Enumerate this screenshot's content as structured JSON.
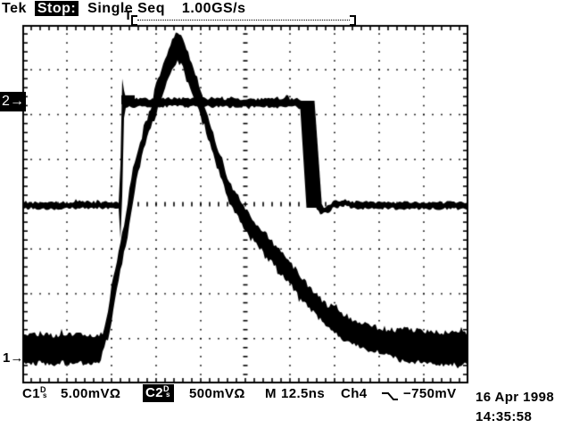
{
  "colors": {
    "ink": "#000000",
    "paper": "#ffffff"
  },
  "header": {
    "brand": "Tek",
    "status": "Stop:",
    "mode": "Single Seq",
    "sample_rate": "1.00GS/s"
  },
  "record_view": {
    "trigger_marker": "T"
  },
  "channel_markers": {
    "ch2": "2→",
    "ch1": "1→"
  },
  "readout": {
    "ch1": {
      "label": "C1",
      "indicator_sup": "D",
      "indicator_sub": "s",
      "scale": "5.00mVΩ"
    },
    "ch2": {
      "label": "C2",
      "indicator_sup": "D",
      "indicator_sub": "s",
      "scale": "500mVΩ"
    },
    "timebase": {
      "label": "M",
      "value": "12.5ns"
    },
    "trigger": {
      "source": "Ch4",
      "slope": "falling-edge",
      "level": "−750mV"
    },
    "date": "16 Apr 1998",
    "time": "14:35:58"
  },
  "chart_data": {
    "type": "line",
    "title": "Tektronix single-sequence acquisition, 1.00 GS/s",
    "x_axis": {
      "scale_per_div": "12.5ns",
      "divisions": 10,
      "total_span": "125ns"
    },
    "y_axis": {
      "divisions": 8
    },
    "grid": "dotted divisions, center crosshair ticks every 0.2 div, frame ticks every 0.2 div",
    "legend_position": "bottom readout bar",
    "series": [
      {
        "name": "Ch1",
        "vertical_scale": "5.00mV/div",
        "marker_level_div": 7.42,
        "description": "fast-rising pulse with rounded peak and slow exponential decay back to noisy baseline",
        "points_div": [
          [
            0,
            7.22
          ],
          [
            0.6,
            7.24
          ],
          [
            1.2,
            7.22
          ],
          [
            1.6,
            7.24
          ],
          [
            1.74,
            7.22
          ],
          [
            1.82,
            7.04
          ],
          [
            1.9,
            6.77
          ],
          [
            1.96,
            6.45
          ],
          [
            2.02,
            6.09
          ],
          [
            2.08,
            5.77
          ],
          [
            2.16,
            5.37
          ],
          [
            2.24,
            4.96
          ],
          [
            2.32,
            4.56
          ],
          [
            2.38,
            4.22
          ],
          [
            2.44,
            3.84
          ],
          [
            2.5,
            3.48
          ],
          [
            2.58,
            3.12
          ],
          [
            2.66,
            2.79
          ],
          [
            2.76,
            2.45
          ],
          [
            2.86,
            2.11
          ],
          [
            2.96,
            1.79
          ],
          [
            3.06,
            1.47
          ],
          [
            3.16,
            1.19
          ],
          [
            3.26,
            0.92
          ],
          [
            3.34,
            0.72
          ],
          [
            3.42,
            0.56
          ],
          [
            3.48,
            0.5
          ],
          [
            3.54,
            0.54
          ],
          [
            3.6,
            0.66
          ],
          [
            3.68,
            0.86
          ],
          [
            3.78,
            1.11
          ],
          [
            3.9,
            1.45
          ],
          [
            4.04,
            1.87
          ],
          [
            4.18,
            2.33
          ],
          [
            4.32,
            2.79
          ],
          [
            4.46,
            3.22
          ],
          [
            4.6,
            3.62
          ],
          [
            4.74,
            3.94
          ],
          [
            4.9,
            4.16
          ],
          [
            5.08,
            4.44
          ],
          [
            5.26,
            4.68
          ],
          [
            5.42,
            4.86
          ],
          [
            5.6,
            5.07
          ],
          [
            5.76,
            5.27
          ],
          [
            5.92,
            5.45
          ],
          [
            6.1,
            5.67
          ],
          [
            6.26,
            5.87
          ],
          [
            6.42,
            6.07
          ],
          [
            6.56,
            6.23
          ],
          [
            6.7,
            6.37
          ],
          [
            6.84,
            6.49
          ],
          [
            6.98,
            6.59
          ],
          [
            7.12,
            6.69
          ],
          [
            7.28,
            6.79
          ],
          [
            7.44,
            6.87
          ],
          [
            7.62,
            6.95
          ],
          [
            7.82,
            7.0
          ],
          [
            8.02,
            7.04
          ],
          [
            8.26,
            7.1
          ],
          [
            8.52,
            7.14
          ],
          [
            8.78,
            7.16
          ],
          [
            9.06,
            7.2
          ],
          [
            9.32,
            7.22
          ],
          [
            9.62,
            7.22
          ],
          [
            9.86,
            7.24
          ],
          [
            10,
            7.22
          ]
        ],
        "render": {
          "seed": 7,
          "jitter": 3,
          "slope_k": 3.2,
          "halfwidth": [
            [
              0,
              1.78,
              16
            ],
            [
              1.78,
              2.95,
              9
            ],
            [
              2.95,
              4.05,
              16
            ],
            [
              4.05,
              6.9,
              12
            ],
            [
              6.9,
              8.4,
              14
            ],
            [
              8.4,
              10.01,
              18
            ]
          ],
          "fills": []
        }
      },
      {
        "name": "Ch2",
        "vertical_scale": "500mV/div",
        "marker_level_div": 1.73,
        "description": "square pulse, high from 2.2 div to 6.4 div with jittered falling edge",
        "points_div": [
          [
            0,
            4.03
          ],
          [
            1.1,
            4.02
          ],
          [
            2.16,
            4.02
          ],
          [
            2.2,
            3.94
          ],
          [
            2.26,
            1.79
          ],
          [
            2.3,
            1.74
          ],
          [
            3.5,
            1.73
          ],
          [
            5.1,
            1.74
          ],
          [
            6.22,
            1.73
          ],
          [
            6.28,
            1.89
          ],
          [
            6.6,
            3.94
          ],
          [
            6.66,
            4.1
          ],
          [
            6.82,
            4.14
          ],
          [
            6.98,
            4.0
          ],
          [
            7.22,
            3.97
          ],
          [
            7.46,
            4.02
          ],
          [
            7.9,
            4.03
          ],
          [
            8.9,
            4.03
          ],
          [
            10,
            4.03
          ]
        ],
        "render": {
          "seed": 3,
          "jitter": 1.6,
          "slope_k": 2.2,
          "halfwidth": [
            [
              0,
              2.3,
              3.5
            ],
            [
              2.3,
              6.25,
              4.5
            ],
            [
              6.25,
              6.75,
              5
            ],
            [
              6.75,
              10.01,
              3.5
            ]
          ],
          "fills": [
            [
              [
                6.22,
                1.69
              ],
              [
                6.55,
                1.69
              ],
              [
                6.72,
                4.08
              ],
              [
                6.37,
                4.08
              ]
            ],
            [
              [
                2.22,
                1.57
              ],
              [
                2.52,
                1.57
              ],
              [
                2.52,
                1.77
              ],
              [
                2.22,
                1.77
              ]
            ]
          ]
        }
      }
    ]
  }
}
